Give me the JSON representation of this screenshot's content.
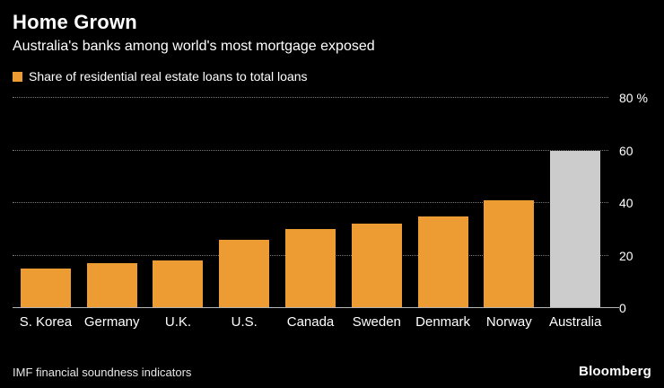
{
  "header": {
    "title": "Home Grown",
    "subtitle": "Australia's banks among world's most mortgage exposed"
  },
  "legend": {
    "label": "Share of residential real estate loans to total loans"
  },
  "chart_data": {
    "type": "bar",
    "title": "Home Grown",
    "subtitle": "Australia's banks among world's most mortgage exposed",
    "legend_label": "Share of residential real estate loans to total loans",
    "categories": [
      "S. Korea",
      "Germany",
      "U.K.",
      "U.S.",
      "Canada",
      "Sweden",
      "Denmark",
      "Norway",
      "Australia"
    ],
    "values": [
      15,
      17,
      18,
      26,
      30,
      32,
      35,
      41,
      60
    ],
    "bar_colors": [
      "#ED9B33",
      "#ED9B33",
      "#ED9B33",
      "#ED9B33",
      "#ED9B33",
      "#ED9B33",
      "#ED9B33",
      "#ED9B33",
      "#CCCCCC"
    ],
    "unit": "%",
    "ylim": [
      0,
      80
    ],
    "yticks": [
      0,
      20,
      40,
      60,
      80
    ],
    "ytick_labels": [
      "0",
      "20",
      "40",
      "60",
      "80 %"
    ],
    "grid": "dotted horizontal, axis labels on right",
    "legend_position": "top-left"
  },
  "colors": {
    "background": "#000000",
    "bar": "#ED9B33",
    "highlight_bar": "#CCCCCC",
    "text": "#FFFFFF",
    "grid": "#787878"
  },
  "footer": {
    "source": "IMF financial soundness indicators",
    "brand": "Bloomberg"
  }
}
